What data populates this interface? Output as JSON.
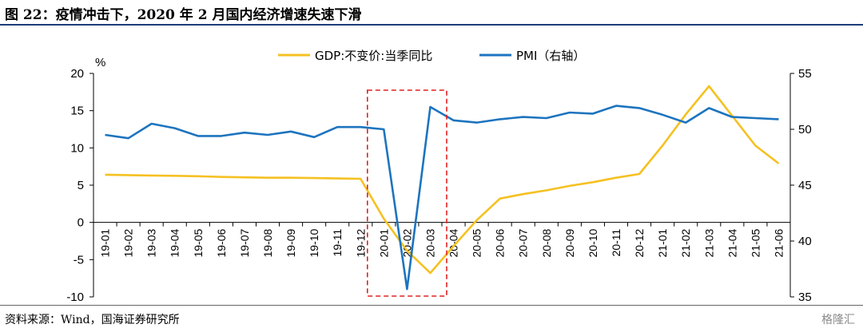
{
  "title": "图 22：疫情冲击下，2020 年 2 月国内经济增速失速下滑",
  "source": "资料来源：Wind，国海证券研究所",
  "watermark": "格隆汇",
  "chart_data": {
    "type": "line",
    "y_unit": "%",
    "categories": [
      "19-01",
      "19-02",
      "19-03",
      "19-04",
      "19-05",
      "19-06",
      "19-07",
      "19-08",
      "19-09",
      "19-10",
      "19-11",
      "19-12",
      "20-01",
      "20-02",
      "20-03",
      "20-04",
      "20-05",
      "20-06",
      "20-07",
      "20-08",
      "20-09",
      "20-10",
      "20-11",
      "20-12",
      "21-01",
      "21-02",
      "21-03",
      "21-04",
      "21-05",
      "21-06"
    ],
    "left_axis": {
      "ylim": [
        -10,
        20
      ],
      "ticks": [
        -10,
        -5,
        0,
        5,
        10,
        15,
        20
      ]
    },
    "right_axis": {
      "ylim": [
        35,
        55
      ],
      "ticks": [
        35,
        40,
        45,
        50,
        55
      ]
    },
    "series": [
      {
        "name": "GDP:不变价:当季同比",
        "axis": "left",
        "color": "#f5c122",
        "values": [
          6.4,
          6.35,
          6.3,
          6.25,
          6.2,
          6.1,
          6.05,
          6.0,
          6.0,
          5.95,
          5.9,
          5.85,
          0.5,
          -3.8,
          -6.8,
          -3.2,
          0.3,
          3.2,
          3.8,
          4.3,
          4.9,
          5.4,
          6.0,
          6.5,
          10.3,
          14.5,
          18.3,
          14.3,
          10.3,
          7.9
        ]
      },
      {
        "name": "PMI（右轴）",
        "axis": "right",
        "color": "#1d74be",
        "values": [
          49.5,
          49.2,
          50.5,
          50.1,
          49.4,
          49.4,
          49.7,
          49.5,
          49.8,
          49.3,
          50.2,
          50.2,
          50.0,
          35.7,
          52.0,
          50.8,
          50.6,
          50.9,
          51.1,
          51.0,
          51.5,
          51.4,
          52.1,
          51.9,
          51.3,
          50.6,
          51.9,
          51.1,
          51.0,
          50.9
        ]
      }
    ],
    "highlight": {
      "categories": [
        "20-01",
        "20-02",
        "20-03"
      ],
      "style": "red dashed box"
    },
    "grid": false,
    "legend_position": "top-center"
  }
}
